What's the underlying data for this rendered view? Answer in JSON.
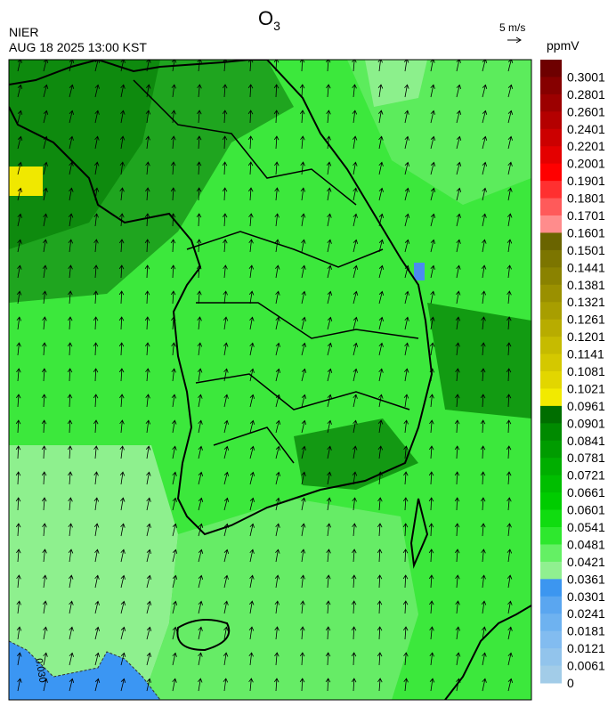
{
  "header": {
    "title": "O",
    "title_subscript": "3",
    "agency": "NIER",
    "timestamp": "AUG 18 2025 13:00 KST",
    "wind_scale": "5 m/s"
  },
  "map": {
    "contour_label": "0.030"
  },
  "colorbar": {
    "unit": "ppmV",
    "labels": [
      "0.3001",
      "0.2801",
      "0.2601",
      "0.2401",
      "0.2201",
      "0.2001",
      "0.1901",
      "0.1801",
      "0.1701",
      "0.1601",
      "0.1501",
      "0.1441",
      "0.1381",
      "0.1321",
      "0.1261",
      "0.1201",
      "0.1141",
      "0.1081",
      "0.1021",
      "0.0961",
      "0.0901",
      "0.0841",
      "0.0781",
      "0.0721",
      "0.0661",
      "0.0601",
      "0.0541",
      "0.0481",
      "0.0421",
      "0.0361",
      "0.0301",
      "0.0241",
      "0.0181",
      "0.0121",
      "0.0061",
      "0"
    ],
    "colors": [
      "#6e0000",
      "#860000",
      "#9c0000",
      "#b40000",
      "#cc0000",
      "#e40000",
      "#ff0000",
      "#ff3030",
      "#ff5a5a",
      "#ff8c8c",
      "#6a6400",
      "#7c7500",
      "#8a8200",
      "#9a9000",
      "#a89e00",
      "#b8ac00",
      "#c6bb00",
      "#d4c800",
      "#e2d600",
      "#f2ea00",
      "#006e00",
      "#008a00",
      "#009c00",
      "#00ae00",
      "#00be00",
      "#00cc00",
      "#10dc10",
      "#2ee82e",
      "#64f064",
      "#90f090",
      "#3c96f0",
      "#5aa6f0",
      "#6eb2f0",
      "#82bcf0",
      "#92c4ec",
      "#a2cce8"
    ]
  }
}
